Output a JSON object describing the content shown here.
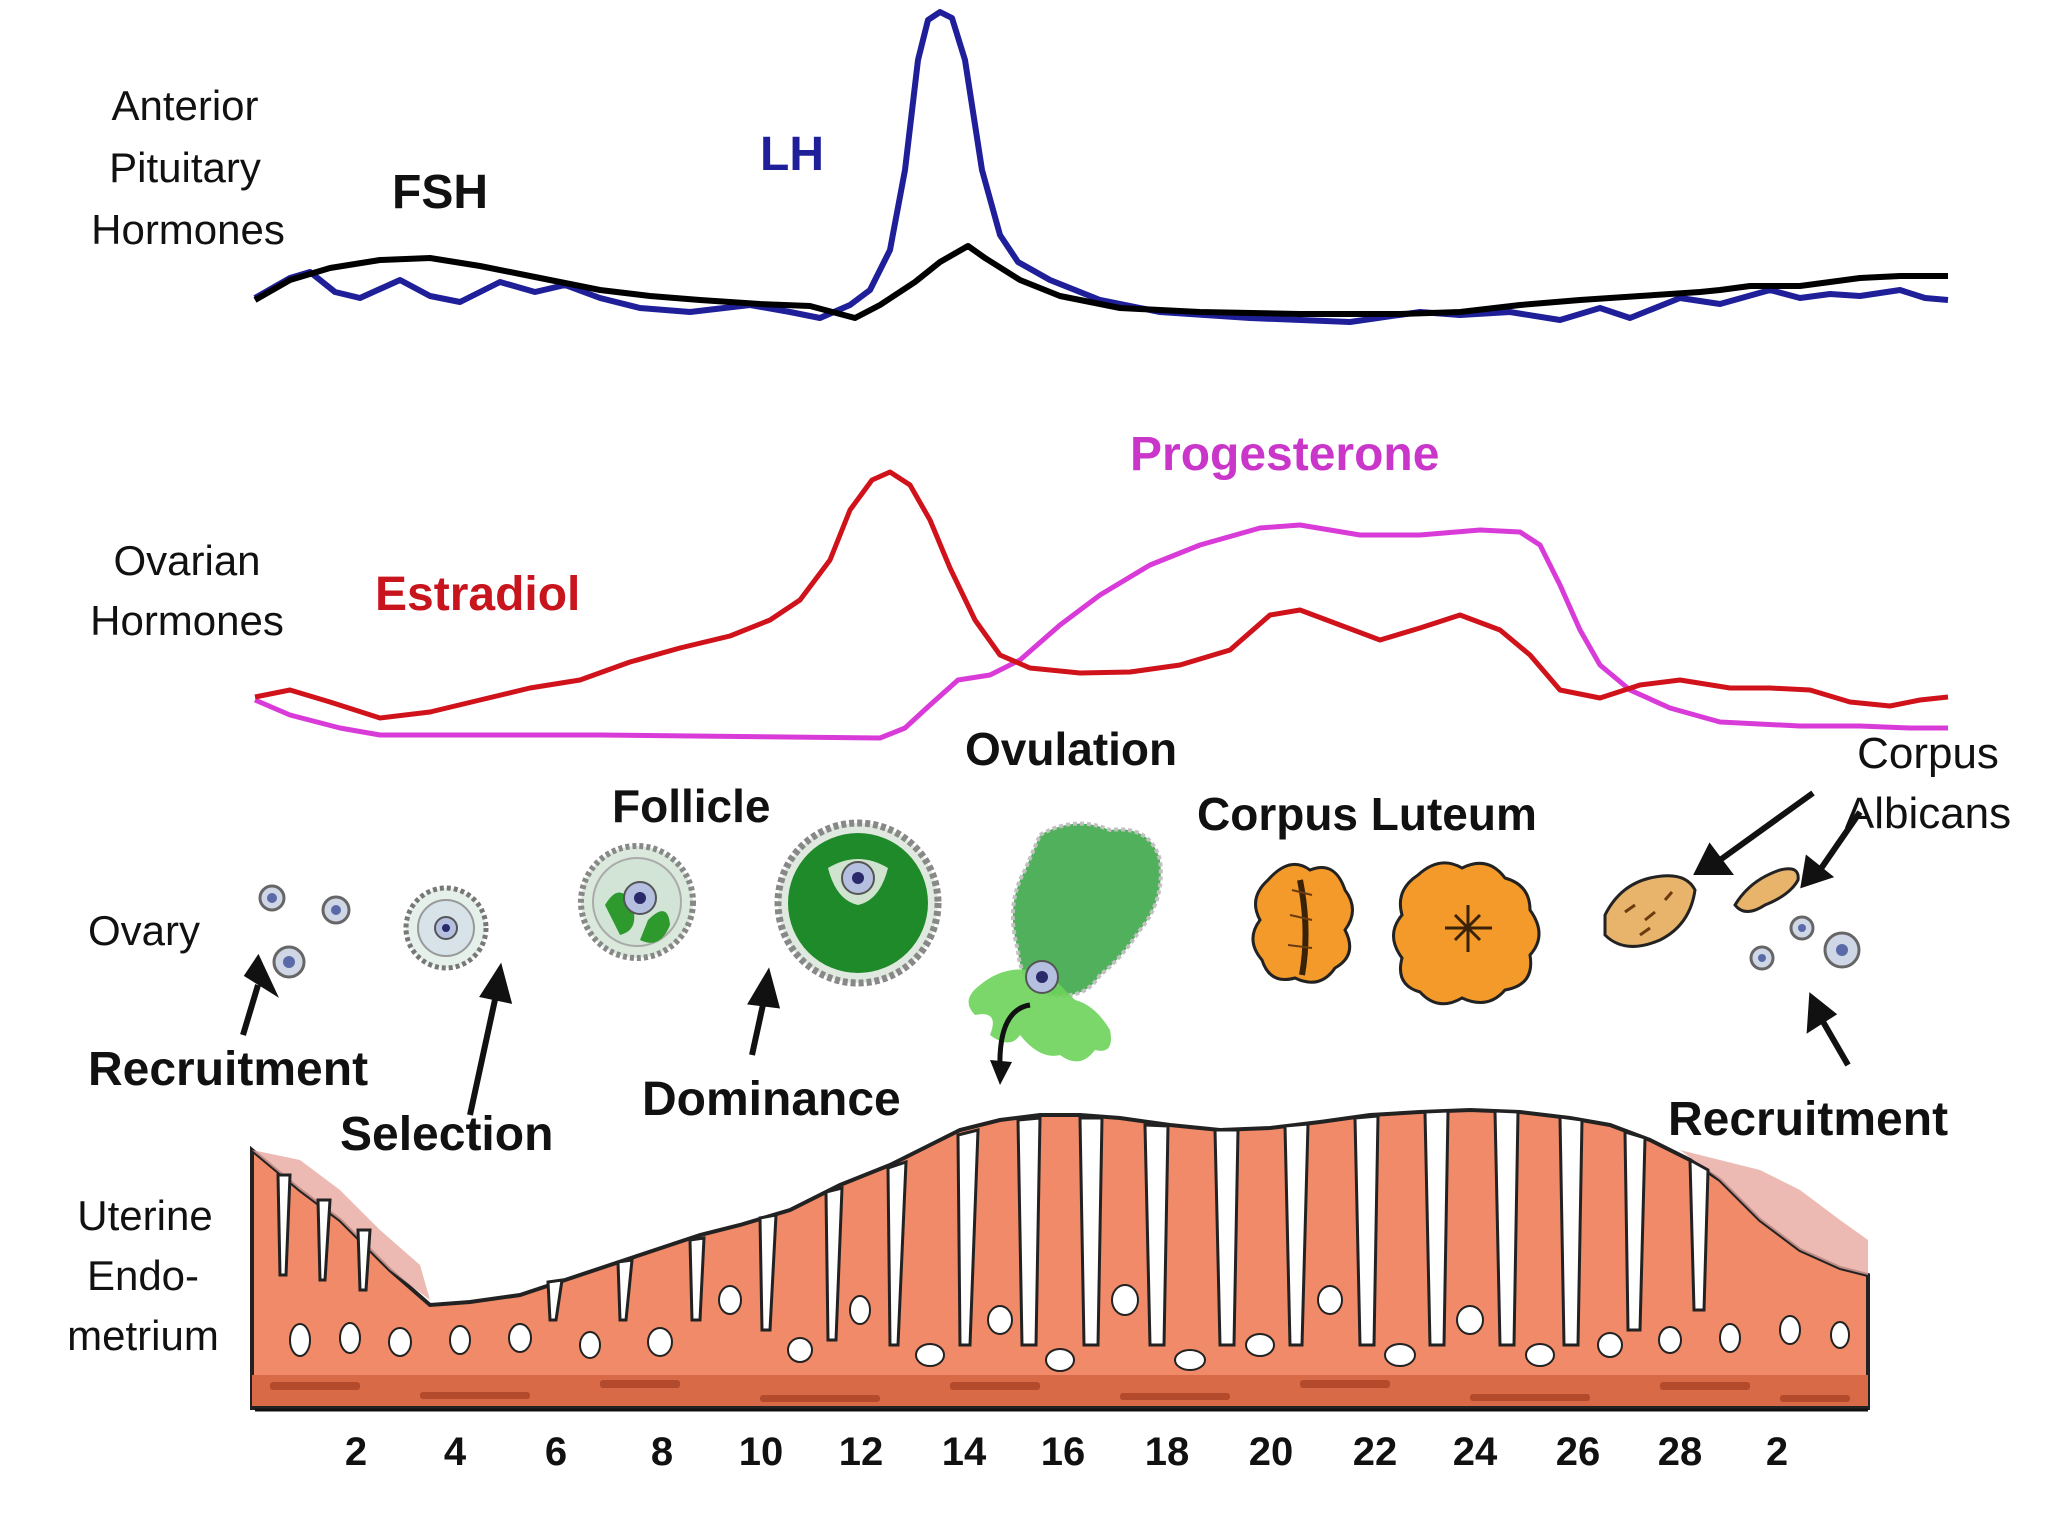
{
  "row_labels": {
    "pituitary": [
      "Anterior",
      "Pituitary",
      "Hormones"
    ],
    "ovarian": [
      "Ovarian",
      "Hormones"
    ],
    "ovary": "Ovary",
    "uterine": [
      "Uterine",
      "Endo-",
      "metrium"
    ]
  },
  "hormones": {
    "fsh": "FSH",
    "lh": "LH",
    "estradiol": "Estradiol",
    "progesterone": "Progesterone"
  },
  "stages": {
    "follicle": "Follicle",
    "ovulation": "Ovulation",
    "corpus_luteum": "Corpus Luteum",
    "corpus_albicans": [
      "Corpus",
      "Albicans"
    ]
  },
  "phases": {
    "recruitment_left": "Recruitment",
    "selection": "Selection",
    "dominance": "Dominance",
    "recruitment_right": "Recruitment"
  },
  "x_axis": {
    "ticks": [
      "2",
      "4",
      "6",
      "8",
      "10",
      "12",
      "14",
      "16",
      "18",
      "20",
      "22",
      "24",
      "26",
      "28",
      "2"
    ]
  },
  "colors": {
    "fsh": "#000000",
    "lh": "#1f1f9a",
    "estradiol": "#d0121b",
    "progesterone": "#d93bd9",
    "follicle_green": "#2e9a2e",
    "luteum_orange": "#f39a2a",
    "endometrium": "#f08a68"
  }
}
